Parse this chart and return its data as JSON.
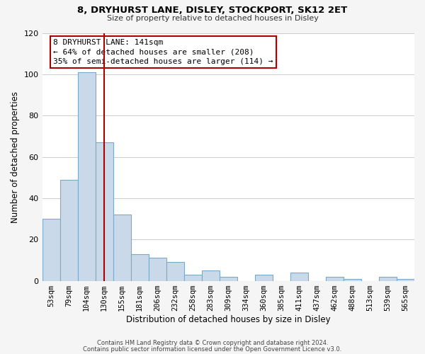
{
  "title1": "8, DRYHURST LANE, DISLEY, STOCKPORT, SK12 2ET",
  "title2": "Size of property relative to detached houses in Disley",
  "xlabel": "Distribution of detached houses by size in Disley",
  "ylabel": "Number of detached properties",
  "bar_labels": [
    "53sqm",
    "79sqm",
    "104sqm",
    "130sqm",
    "155sqm",
    "181sqm",
    "206sqm",
    "232sqm",
    "258sqm",
    "283sqm",
    "309sqm",
    "334sqm",
    "360sqm",
    "385sqm",
    "411sqm",
    "437sqm",
    "462sqm",
    "488sqm",
    "513sqm",
    "539sqm",
    "565sqm"
  ],
  "bar_heights": [
    30,
    49,
    101,
    67,
    32,
    13,
    11,
    9,
    3,
    5,
    2,
    0,
    3,
    0,
    4,
    0,
    2,
    1,
    0,
    2,
    1
  ],
  "bar_color": "#c9d9ea",
  "bar_edge_color": "#7aaac8",
  "ylim": [
    0,
    120
  ],
  "yticks": [
    0,
    20,
    40,
    60,
    80,
    100,
    120
  ],
  "vline_color": "#aa0000",
  "annotation_title": "8 DRYHURST LANE: 141sqm",
  "annotation_line1": "← 64% of detached houses are smaller (208)",
  "annotation_line2": "35% of semi-detached houses are larger (114) →",
  "annotation_box_edgecolor": "#aa0000",
  "footer1": "Contains HM Land Registry data © Crown copyright and database right 2024.",
  "footer2": "Contains public sector information licensed under the Open Government Licence v3.0.",
  "fig_facecolor": "#f5f5f5",
  "plot_facecolor": "#ffffff",
  "grid_color": "#cccccc"
}
